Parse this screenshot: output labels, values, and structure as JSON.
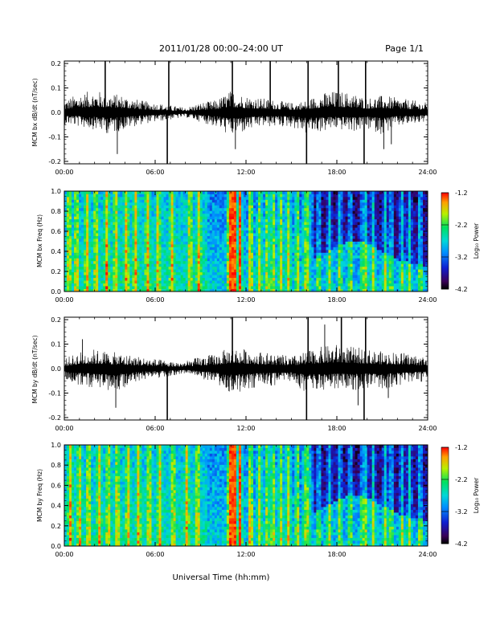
{
  "header": {
    "title": "2011/01/28  00:00–24:00 UT",
    "page": "Page 1/1"
  },
  "x_axis_title": "Universal Time (hh:mm)",
  "colorbar": {
    "label": "Log₁₀ Power",
    "tick_labels": [
      "-1.2",
      "-2.2",
      "-3.2",
      "-4.2"
    ]
  },
  "chart_data": [
    {
      "type": "line",
      "ylabel": "MCM bx dB/dt (nT/sec)",
      "xlim": [
        0,
        24
      ],
      "ylim": [
        -0.21,
        0.21
      ],
      "x_ticks": [
        "00:00",
        "06:00",
        "12:00",
        "18:00",
        "24:00"
      ],
      "y_ticks": [
        "0.2",
        "0.1",
        "0.0",
        "-0.1",
        "-0.2"
      ],
      "series": [
        {
          "x": [
            0,
            1,
            2,
            3,
            4,
            5,
            6,
            7,
            8,
            9,
            10,
            11,
            12,
            13,
            14,
            15,
            16,
            17,
            18,
            19,
            20,
            21,
            22,
            23,
            24
          ],
          "envelope_upper": [
            0.05,
            0.08,
            0.09,
            0.08,
            0.07,
            0.05,
            0.04,
            0.03,
            0.02,
            0.04,
            0.05,
            0.09,
            0.07,
            0.06,
            0.05,
            0.04,
            0.05,
            0.08,
            0.09,
            0.08,
            0.06,
            0.07,
            0.06,
            0.05,
            0.04
          ],
          "envelope_lower": [
            -0.05,
            -0.06,
            -0.07,
            -0.09,
            -0.07,
            -0.05,
            -0.04,
            -0.03,
            -0.02,
            -0.04,
            -0.06,
            -0.1,
            -0.08,
            -0.06,
            -0.06,
            -0.06,
            -0.09,
            -0.08,
            -0.07,
            -0.08,
            -0.07,
            -0.09,
            -0.06,
            -0.05,
            -0.04
          ]
        }
      ],
      "spikes": [
        {
          "x": 2.7,
          "y": 0.21
        },
        {
          "x": 3.5,
          "y": -0.17
        },
        {
          "x": 6.8,
          "y": -0.21
        },
        {
          "x": 6.9,
          "y": 0.21
        },
        {
          "x": 11.1,
          "y": 0.21
        },
        {
          "x": 11.3,
          "y": -0.15
        },
        {
          "x": 13.6,
          "y": 0.21
        },
        {
          "x": 16.0,
          "y": -0.21
        },
        {
          "x": 16.1,
          "y": 0.21
        },
        {
          "x": 18.1,
          "y": 0.21
        },
        {
          "x": 19.8,
          "y": -0.21
        },
        {
          "x": 19.9,
          "y": 0.21
        },
        {
          "x": 21.1,
          "y": -0.15
        },
        {
          "x": 21.6,
          "y": -0.13
        }
      ]
    },
    {
      "type": "heatmap",
      "ylabel": "MCM bx Freq (Hz)",
      "xlim": [
        0,
        24
      ],
      "ylim": [
        0.0,
        1.0
      ],
      "zlim": [
        -4.2,
        -1.2
      ],
      "x_ticks": [
        "00:00",
        "06:00",
        "12:00",
        "18:00",
        "24:00"
      ],
      "y_ticks": [
        "1.0",
        "0.8",
        "0.6",
        "0.4",
        "0.2",
        "0.0"
      ],
      "bright_bands_hours": [
        0.3,
        0.8,
        1.5,
        2.1,
        2.8,
        3.4,
        4.1,
        4.7,
        5.5,
        6.2,
        7.1,
        8.3,
        8.9,
        10.9,
        11.2,
        11.6,
        12.3,
        12.9,
        13.4,
        13.8,
        14.3,
        14.8,
        15.4,
        15.9,
        16.1,
        16.8,
        17.5,
        18.2,
        18.9,
        19.7,
        19.9,
        20.4,
        21.2,
        21.6,
        22.3,
        22.8,
        23.5
      ],
      "quiet_high_freq_hours": [
        16.5,
        24.0
      ]
    },
    {
      "type": "line",
      "ylabel": "MCM by dB/dt (nT/sec)",
      "xlim": [
        0,
        24
      ],
      "ylim": [
        -0.21,
        0.21
      ],
      "x_ticks": [
        "00:00",
        "06:00",
        "12:00",
        "18:00",
        "24:00"
      ],
      "y_ticks": [
        "0.2",
        "0.1",
        "0.0",
        "-0.1",
        "-0.2"
      ],
      "series": [
        {
          "x": [
            0,
            1,
            2,
            3,
            4,
            5,
            6,
            7,
            8,
            9,
            10,
            11,
            12,
            13,
            14,
            15,
            16,
            17,
            18,
            19,
            20,
            21,
            22,
            23,
            24
          ],
          "envelope_upper": [
            0.04,
            0.07,
            0.08,
            0.07,
            0.06,
            0.05,
            0.04,
            0.03,
            0.03,
            0.05,
            0.06,
            0.09,
            0.08,
            0.07,
            0.06,
            0.05,
            0.07,
            0.09,
            0.1,
            0.09,
            0.08,
            0.07,
            0.07,
            0.06,
            0.05
          ],
          "envelope_lower": [
            -0.04,
            -0.07,
            -0.08,
            -0.1,
            -0.08,
            -0.05,
            -0.04,
            -0.03,
            -0.02,
            -0.04,
            -0.06,
            -0.1,
            -0.09,
            -0.07,
            -0.07,
            -0.06,
            -0.1,
            -0.09,
            -0.08,
            -0.09,
            -0.08,
            -0.09,
            -0.07,
            -0.06,
            -0.05
          ]
        }
      ],
      "spikes": [
        {
          "x": 1.2,
          "y": 0.12
        },
        {
          "x": 3.4,
          "y": -0.16
        },
        {
          "x": 6.8,
          "y": -0.21
        },
        {
          "x": 11.1,
          "y": 0.21
        },
        {
          "x": 16.0,
          "y": -0.21
        },
        {
          "x": 16.1,
          "y": 0.21
        },
        {
          "x": 17.2,
          "y": 0.18
        },
        {
          "x": 18.3,
          "y": 0.21
        },
        {
          "x": 19.4,
          "y": -0.15
        },
        {
          "x": 19.8,
          "y": -0.21
        },
        {
          "x": 19.9,
          "y": 0.21
        },
        {
          "x": 21.4,
          "y": -0.12
        }
      ]
    },
    {
      "type": "heatmap",
      "ylabel": "MCM by Freq (Hz)",
      "xlim": [
        0,
        24
      ],
      "ylim": [
        0.0,
        1.0
      ],
      "zlim": [
        -4.2,
        -1.2
      ],
      "x_ticks": [
        "00:00",
        "06:00",
        "12:00",
        "18:00",
        "24:00"
      ],
      "y_ticks": [
        "1.0",
        "0.8",
        "0.6",
        "0.4",
        "0.2",
        "0.0"
      ],
      "bright_bands_hours": [
        0.4,
        1.0,
        1.6,
        2.3,
        2.9,
        3.5,
        4.2,
        4.9,
        5.6,
        6.3,
        7.2,
        8.1,
        8.8,
        10.9,
        11.2,
        11.6,
        12.3,
        12.9,
        13.4,
        13.8,
        14.3,
        14.8,
        15.4,
        15.9,
        16.1,
        16.8,
        17.5,
        18.2,
        18.9,
        19.7,
        19.9,
        20.4,
        21.2,
        21.6,
        22.3,
        22.8,
        23.5
      ],
      "quiet_high_freq_hours": [
        16.5,
        24.0
      ]
    }
  ]
}
